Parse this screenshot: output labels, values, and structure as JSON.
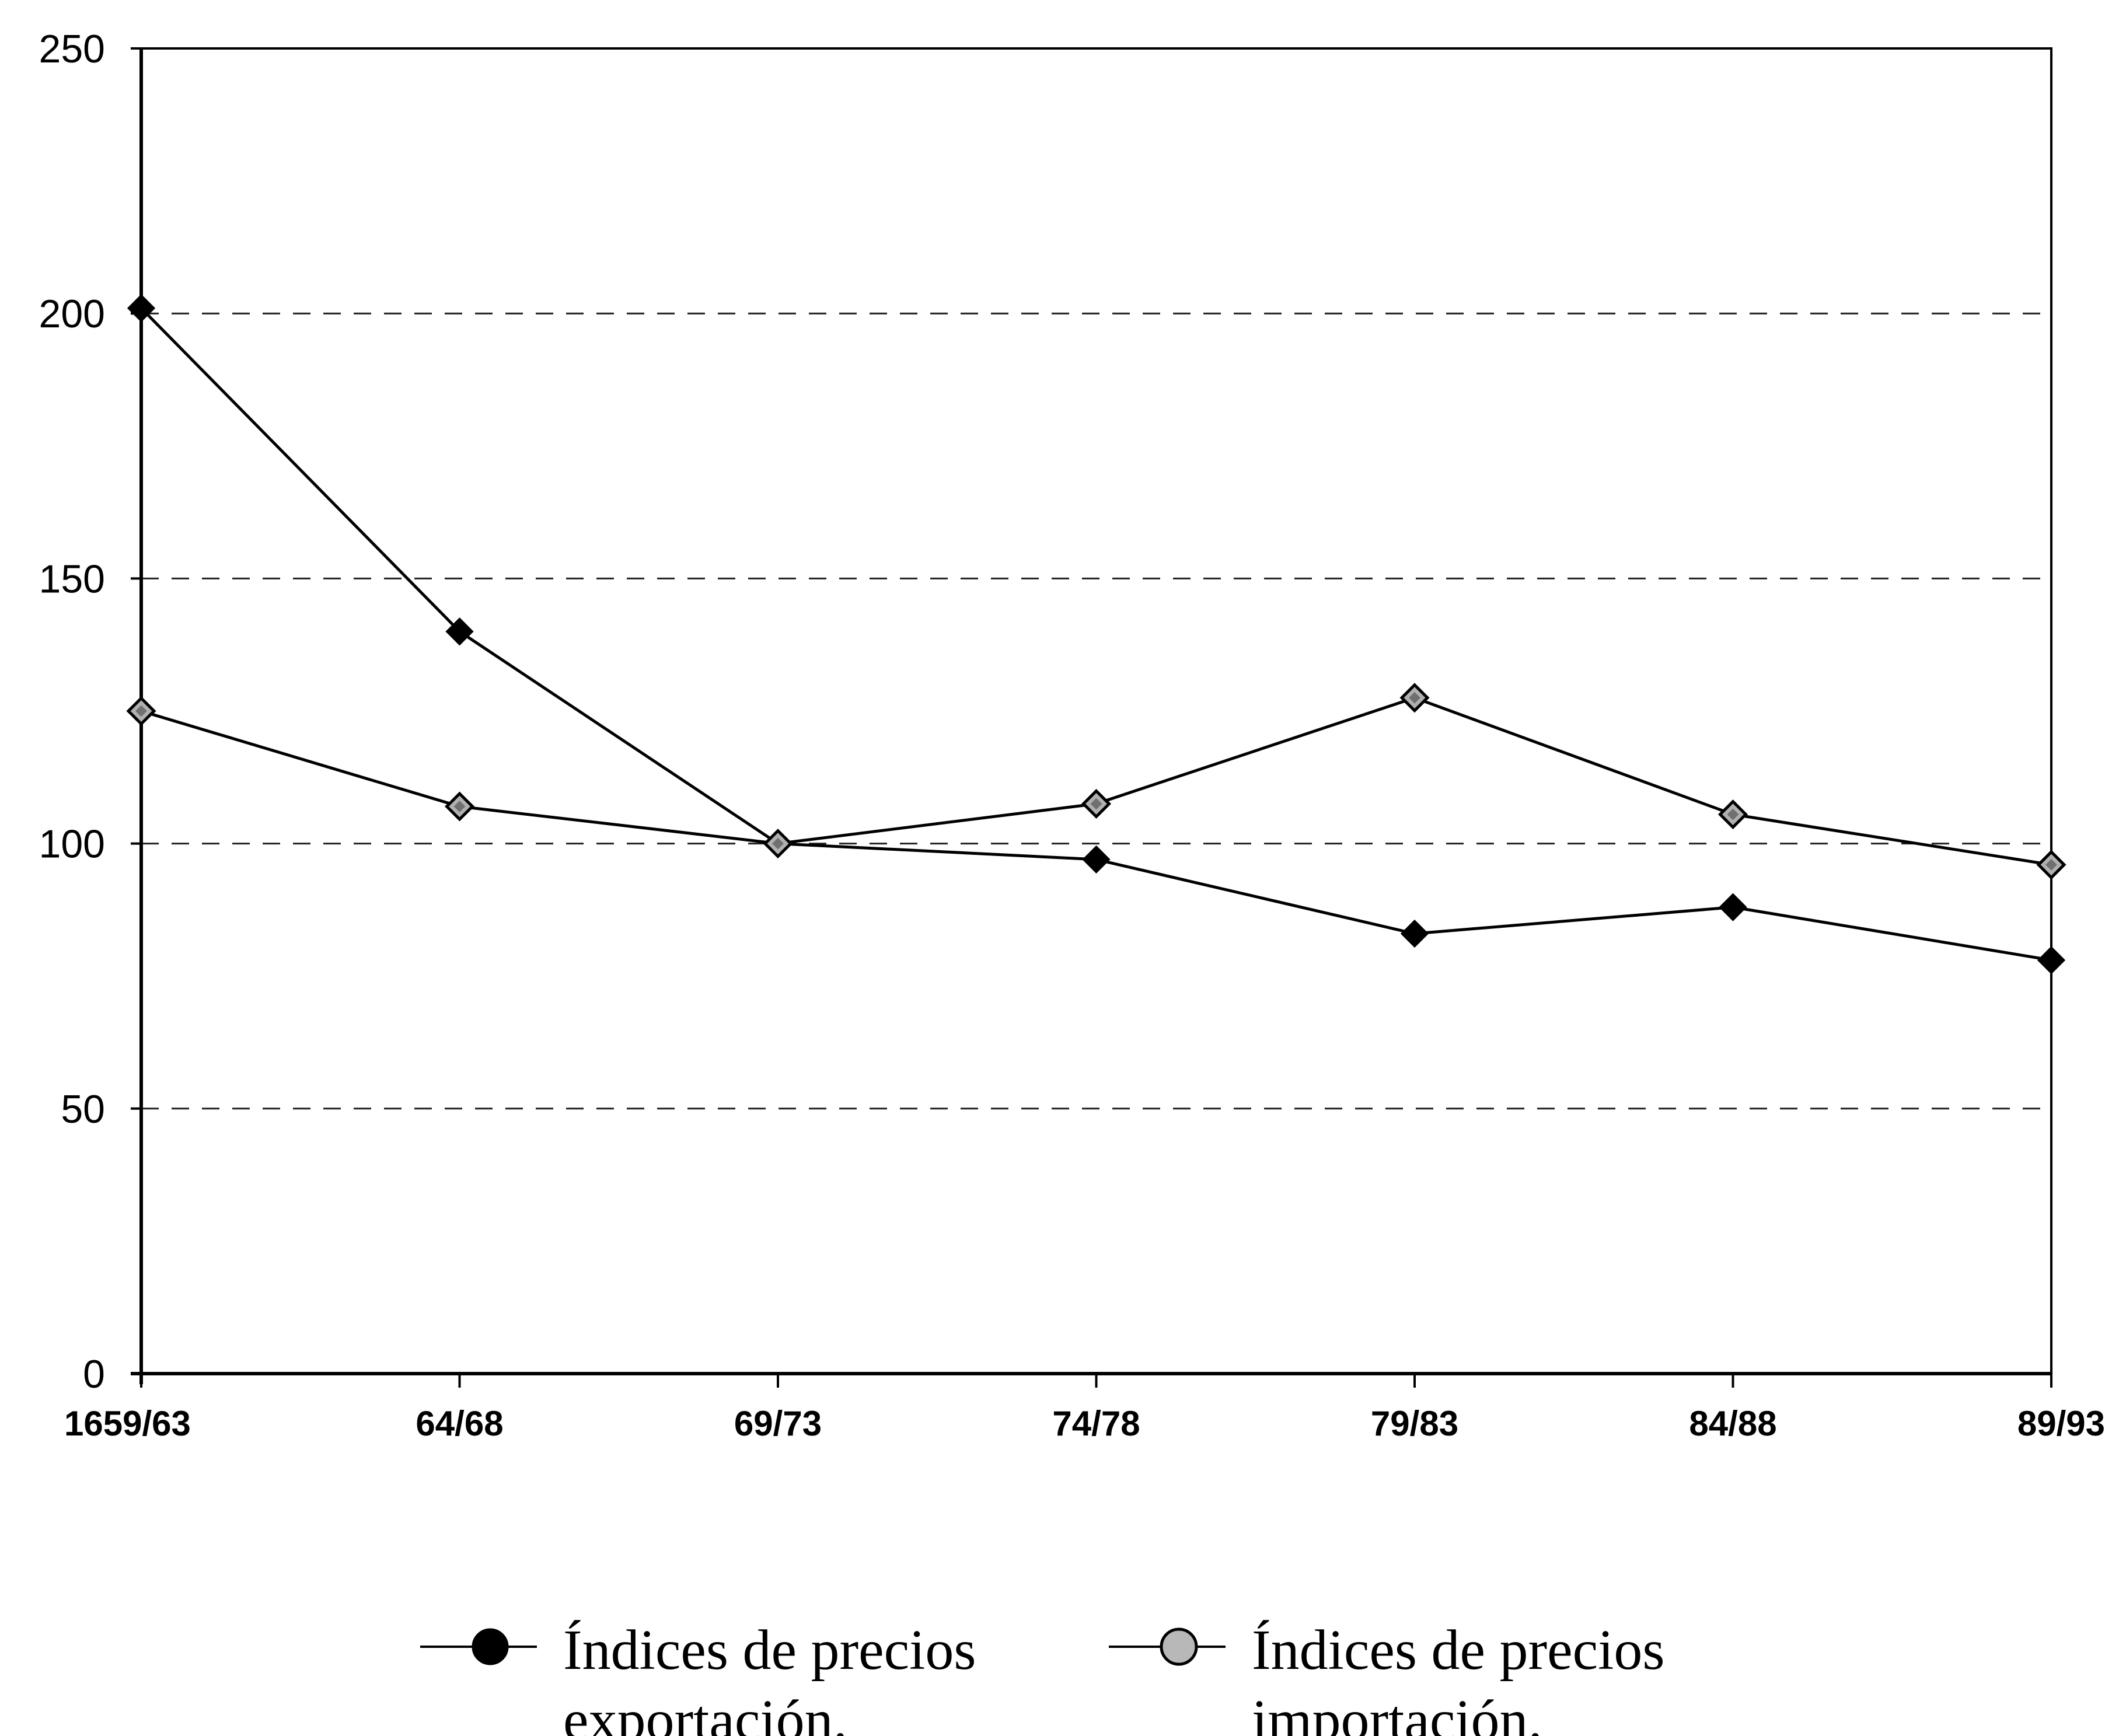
{
  "chart_data": {
    "type": "line",
    "title": "",
    "xlabel": "",
    "ylabel": "",
    "categories": [
      "1659/63",
      "64/68",
      "69/73",
      "74/78",
      "79/83",
      "84/88",
      "89/93"
    ],
    "y_ticks": [
      "0",
      "50",
      "100",
      "150",
      "200",
      "250"
    ],
    "ylim": [
      0,
      250
    ],
    "grid": "horizontal dashed at 50, 100, 150, 200",
    "legend_position": "bottom-center",
    "series": [
      {
        "name": "Índices de precios exportación.",
        "legend_lines": [
          "Índices de precios",
          "exportación."
        ],
        "marker": "filled",
        "color": "#000000",
        "values": [
          201,
          140,
          100,
          97,
          83,
          88,
          78
        ]
      },
      {
        "name": "Índices de precios importación.",
        "legend_lines": [
          "Índices de precios",
          "importación."
        ],
        "marker": "hollow",
        "color": "#000000",
        "values": [
          125,
          107,
          100,
          107.5,
          127.5,
          105.5,
          96
        ]
      }
    ]
  }
}
